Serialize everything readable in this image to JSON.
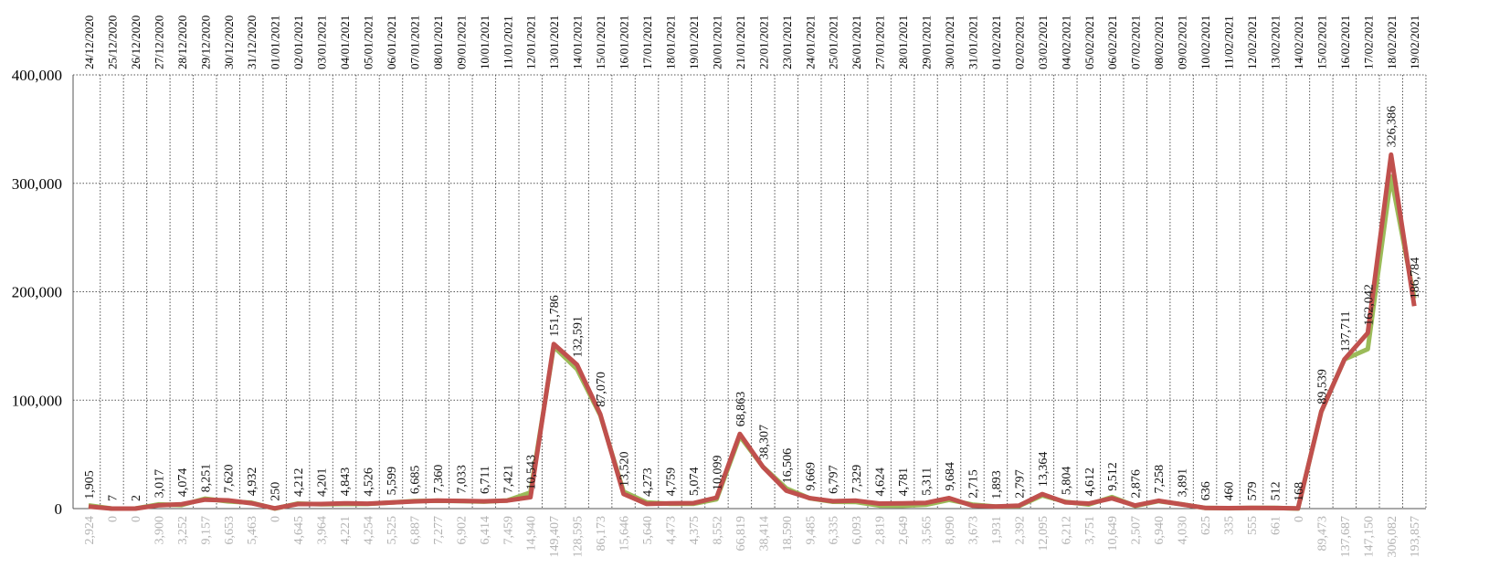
{
  "chart_data": {
    "type": "line",
    "categories": [
      "24/12/2020",
      "25/12/2020",
      "26/12/2020",
      "27/12/2020",
      "28/12/2020",
      "29/12/2020",
      "30/12/2020",
      "31/12/2020",
      "01/01/2021",
      "02/01/2021",
      "03/01/2021",
      "04/01/2021",
      "05/01/2021",
      "06/01/2021",
      "07/01/2021",
      "08/01/2021",
      "09/01/2021",
      "10/01/2021",
      "11/01/2021",
      "12/01/2021",
      "13/01/2021",
      "14/01/2021",
      "15/01/2021",
      "16/01/2021",
      "17/01/2021",
      "18/01/2021",
      "19/01/2021",
      "20/01/2021",
      "21/01/2021",
      "22/01/2021",
      "23/01/2021",
      "24/01/2021",
      "25/01/2021",
      "26/01/2021",
      "27/01/2021",
      "28/01/2021",
      "29/01/2021",
      "30/01/2021",
      "31/01/2021",
      "01/02/2021",
      "02/02/2021",
      "03/02/2021",
      "04/02/2021",
      "05/02/2021",
      "06/02/2021",
      "07/02/2021",
      "08/02/2021",
      "09/02/2021",
      "10/02/2021",
      "11/02/2021",
      "12/02/2021",
      "13/02/2021",
      "14/02/2021",
      "15/02/2021",
      "16/02/2021",
      "17/02/2021",
      "18/02/2021",
      "19/02/2021"
    ],
    "series": [
      {
        "color": "#9bbb59",
        "label_color": "#b3b3b3",
        "label_side": "below",
        "values": [
          2924,
          0,
          0,
          3900,
          3252,
          9157,
          6653,
          5463,
          0,
          4645,
          3964,
          4221,
          4254,
          5525,
          6887,
          7277,
          6902,
          6414,
          7459,
          14940,
          149407,
          128595,
          86173,
          15646,
          5640,
          4473,
          4375,
          8552,
          66819,
          38414,
          18590,
          9485,
          6335,
          6093,
          2819,
          2649,
          3565,
          8090,
          3673,
          1931,
          2392,
          12095,
          6212,
          3751,
          10649,
          2507,
          6940,
          4030,
          625,
          335,
          555,
          661,
          0,
          89473,
          137687,
          147150,
          306082,
          193857
        ],
        "value_labels": [
          "2,924",
          "0",
          "0",
          "3,900",
          "3,252",
          "9,157",
          "6,653",
          "5,463",
          "0",
          "4,645",
          "3,964",
          "4,221",
          "4,254",
          "5,525",
          "6,887",
          "7,277",
          "6,902",
          "6,414",
          "7,459",
          "14,940",
          "149,407",
          "128,595",
          "86,173",
          "15,646",
          "5,640",
          "4,473",
          "4,375",
          "8,552",
          "66,819",
          "38,414",
          "18,590",
          "9,485",
          "6,335",
          "6,093",
          "2,819",
          "2,649",
          "3,565",
          "8,090",
          "3,673",
          "1,931",
          "2,392",
          "12,095",
          "6,212",
          "3,751",
          "10,649",
          "2,507",
          "6,940",
          "4,030",
          "625",
          "335",
          "555",
          "661",
          "0",
          "89,473",
          "137,687",
          "147,150",
          "306,082",
          "193,857"
        ]
      },
      {
        "color": "#c0504d",
        "label_color": "#111111",
        "label_side": "above",
        "values": [
          1905,
          7,
          2,
          3017,
          4074,
          8251,
          7620,
          4932,
          250,
          4212,
          4201,
          4843,
          4526,
          5599,
          6685,
          7360,
          7033,
          6711,
          7421,
          10543,
          151786,
          132591,
          87070,
          13520,
          4273,
          4759,
          5074,
          10099,
          68863,
          38307,
          16506,
          9669,
          6797,
          7329,
          4624,
          4781,
          5311,
          9684,
          2715,
          1893,
          2797,
          13364,
          5804,
          4612,
          9512,
          2876,
          7258,
          3891,
          636,
          460,
          579,
          512,
          168,
          89539,
          137711,
          162042,
          326386,
          186784
        ],
        "value_labels": [
          "1,905",
          "7",
          "2",
          "3,017",
          "4,074",
          "8,251",
          "7,620",
          "4,932",
          "250",
          "4,212",
          "4,201",
          "4,843",
          "4,526",
          "5,599",
          "6,685",
          "7,360",
          "7,033",
          "6,711",
          "7,421",
          "10,543",
          "151,786",
          "132,591",
          "87,070",
          "13,520",
          "4,273",
          "4,759",
          "5,074",
          "10,099",
          "68,863",
          "38,307",
          "16,506",
          "9,669",
          "6,797",
          "7,329",
          "4,624",
          "4,781",
          "5,311",
          "9,684",
          "2,715",
          "1,893",
          "2,797",
          "13,364",
          "5,804",
          "4,612",
          "9,512",
          "2,876",
          "7,258",
          "3,891",
          "636",
          "460",
          "579",
          "512",
          "168",
          "89,539",
          "137,711",
          "162,042",
          "326,386",
          "186,784"
        ]
      }
    ],
    "ylim": [
      0,
      400000
    ],
    "yticks": [
      0,
      {
        "value": 100000,
        "label": "100,000"
      },
      {
        "value": 200000,
        "label": "200,000"
      },
      {
        "value": 300000,
        "label": "300,000"
      },
      {
        "value": 400000,
        "label": "400,000"
      }
    ],
    "grid": true
  }
}
